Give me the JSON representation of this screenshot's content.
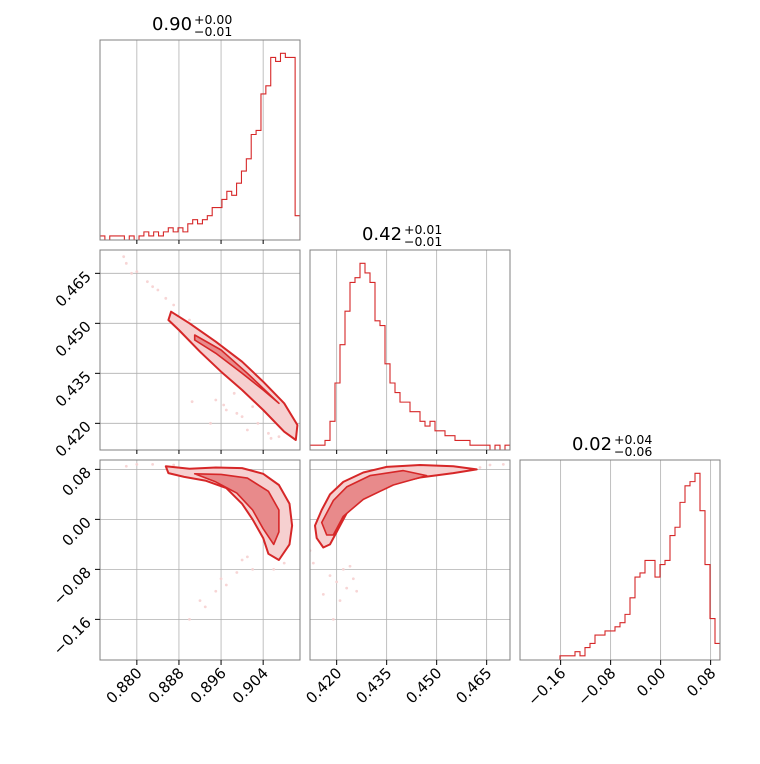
{
  "colors": {
    "series": "#d62728",
    "fill_inner": "#e88a8b",
    "fill_outer": "#f6d0d0",
    "grid": "#b0b0b0",
    "frame": "#808080"
  },
  "chart_data": {
    "type": "corner",
    "grid": true,
    "parameters": [
      {
        "title_main": "0.90",
        "title_sup": "+0.00",
        "title_sub": "−0.01",
        "range": [
          0.873,
          0.911
        ],
        "ticks": [
          0.88,
          0.888,
          0.896,
          0.904
        ],
        "tick_labels": [
          "0.880",
          "0.888",
          "0.896",
          "0.904"
        ]
      },
      {
        "title_main": "0.42",
        "title_sup": "+0.01",
        "title_sub": "−0.01",
        "range": [
          0.412,
          0.472
        ],
        "ticks": [
          0.42,
          0.435,
          0.45,
          0.465
        ],
        "tick_labels": [
          "0.420",
          "0.435",
          "0.450",
          "0.465"
        ]
      },
      {
        "title_main": "0.02",
        "title_sup": "+0.04",
        "title_sub": "−0.06",
        "range": [
          -0.225,
          0.095
        ],
        "ticks": [
          -0.16,
          -0.08,
          0.0,
          0.08
        ],
        "tick_labels": [
          "−0.16",
          "−0.08",
          "0.00",
          "0.08"
        ]
      }
    ],
    "histograms": [
      {
        "param": 0,
        "bin_start": 0.873,
        "bin_end": 0.911,
        "counts": [
          1,
          0,
          1,
          1,
          1,
          0,
          1,
          0,
          1,
          2,
          1,
          2,
          1,
          2,
          3,
          2,
          3,
          2,
          4,
          5,
          4,
          5,
          6,
          8,
          8,
          10,
          12,
          11,
          14,
          17,
          20,
          26,
          27,
          36,
          38,
          45,
          44,
          46,
          45,
          45,
          6
        ]
      },
      {
        "param": 1,
        "bin_start": 0.412,
        "bin_end": 0.472,
        "counts": [
          1,
          1,
          1,
          2,
          6,
          14,
          22,
          29,
          35,
          36,
          39,
          37,
          35,
          27,
          26,
          18,
          14,
          12,
          10,
          10,
          8,
          8,
          6,
          5,
          6,
          4,
          4,
          3,
          3,
          2,
          2,
          2,
          1,
          1,
          1,
          1,
          0,
          1,
          0,
          1
        ]
      },
      {
        "param": 2,
        "bin_start": -0.225,
        "bin_end": 0.095,
        "counts": [
          0,
          0,
          0,
          0,
          0,
          0,
          0,
          0,
          1,
          1,
          1,
          2,
          1,
          3,
          4,
          6,
          6,
          7,
          7,
          8,
          9,
          11,
          15,
          20,
          21,
          24,
          24,
          20,
          23,
          24,
          30,
          32,
          38,
          42,
          43,
          45,
          36,
          23,
          10,
          4
        ]
      }
    ],
    "pairs": [
      {
        "x": 0,
        "y": 1,
        "outer": [
          [
            0.8865,
            0.4535
          ],
          [
            0.89,
            0.45
          ],
          [
            0.895,
            0.4445
          ],
          [
            0.9,
            0.4385
          ],
          [
            0.904,
            0.4325
          ],
          [
            0.908,
            0.426
          ],
          [
            0.9105,
            0.4195
          ],
          [
            0.9102,
            0.415
          ],
          [
            0.908,
            0.4175
          ],
          [
            0.904,
            0.424
          ],
          [
            0.9,
            0.43
          ],
          [
            0.896,
            0.4355
          ],
          [
            0.892,
            0.4415
          ],
          [
            0.888,
            0.448
          ],
          [
            0.886,
            0.451
          ]
        ],
        "inner": [
          [
            0.891,
            0.4465
          ],
          [
            0.896,
            0.442
          ],
          [
            0.901,
            0.435
          ],
          [
            0.905,
            0.429
          ],
          [
            0.907,
            0.426
          ],
          [
            0.904,
            0.43
          ],
          [
            0.9,
            0.435
          ],
          [
            0.895,
            0.441
          ],
          [
            0.891,
            0.445
          ]
        ],
        "scatter": [
          [
            0.8775,
            0.47
          ],
          [
            0.878,
            0.468
          ],
          [
            0.88,
            0.4655
          ],
          [
            0.882,
            0.4625
          ],
          [
            0.879,
            0.465
          ],
          [
            0.884,
            0.46
          ],
          [
            0.8855,
            0.4575
          ],
          [
            0.883,
            0.461
          ],
          [
            0.887,
            0.4555
          ],
          [
            0.89,
            0.451
          ],
          [
            0.8965,
            0.4255
          ],
          [
            0.899,
            0.423
          ],
          [
            0.902,
            0.425
          ],
          [
            0.9,
            0.422
          ],
          [
            0.897,
            0.424
          ],
          [
            0.8985,
            0.429
          ],
          [
            0.903,
            0.42
          ],
          [
            0.905,
            0.417
          ],
          [
            0.901,
            0.418
          ],
          [
            0.9055,
            0.4155
          ],
          [
            0.894,
            0.42
          ],
          [
            0.8905,
            0.4265
          ],
          [
            0.895,
            0.427
          ],
          [
            0.907,
            0.416
          ]
        ]
      },
      {
        "x": 0,
        "y": 2,
        "outer": [
          [
            0.8855,
            0.085
          ],
          [
            0.89,
            0.081
          ],
          [
            0.895,
            0.083
          ],
          [
            0.9,
            0.082
          ],
          [
            0.904,
            0.073
          ],
          [
            0.907,
            0.055
          ],
          [
            0.909,
            0.025
          ],
          [
            0.9095,
            -0.01
          ],
          [
            0.909,
            -0.04
          ],
          [
            0.907,
            -0.065
          ],
          [
            0.905,
            -0.055
          ],
          [
            0.904,
            -0.03
          ],
          [
            0.902,
            0.0
          ],
          [
            0.9,
            0.025
          ],
          [
            0.897,
            0.05
          ],
          [
            0.893,
            0.062
          ],
          [
            0.889,
            0.068
          ],
          [
            0.886,
            0.074
          ]
        ],
        "inner": [
          [
            0.891,
            0.073
          ],
          [
            0.896,
            0.072
          ],
          [
            0.901,
            0.066
          ],
          [
            0.905,
            0.045
          ],
          [
            0.907,
            0.015
          ],
          [
            0.907,
            -0.02
          ],
          [
            0.906,
            -0.04
          ],
          [
            0.904,
            -0.015
          ],
          [
            0.902,
            0.015
          ],
          [
            0.899,
            0.042
          ],
          [
            0.895,
            0.06
          ]
        ],
        "scatter": [
          [
            0.878,
            0.085
          ],
          [
            0.883,
            0.088
          ],
          [
            0.895,
            -0.115
          ],
          [
            0.899,
            -0.085
          ],
          [
            0.9,
            -0.065
          ],
          [
            0.901,
            -0.06
          ],
          [
            0.896,
            -0.095
          ],
          [
            0.893,
            -0.14
          ],
          [
            0.89,
            -0.16
          ],
          [
            0.892,
            -0.13
          ],
          [
            0.897,
            -0.105
          ],
          [
            0.902,
            -0.08
          ],
          [
            0.88,
            0.088
          ],
          [
            0.887,
            0.087
          ],
          [
            0.908,
            -0.07
          ],
          [
            0.906,
            -0.08
          ]
        ]
      },
      {
        "x": 1,
        "y": 2,
        "outer": [
          [
            0.4135,
            -0.01
          ],
          [
            0.414,
            -0.03
          ],
          [
            0.416,
            -0.045
          ],
          [
            0.418,
            -0.04
          ],
          [
            0.42,
            -0.02
          ],
          [
            0.423,
            0.01
          ],
          [
            0.428,
            0.035
          ],
          [
            0.435,
            0.055
          ],
          [
            0.445,
            0.067
          ],
          [
            0.455,
            0.074
          ],
          [
            0.462,
            0.08
          ],
          [
            0.455,
            0.085
          ],
          [
            0.445,
            0.087
          ],
          [
            0.435,
            0.084
          ],
          [
            0.428,
            0.075
          ],
          [
            0.422,
            0.06
          ],
          [
            0.418,
            0.04
          ],
          [
            0.4155,
            0.015
          ]
        ],
        "inner": [
          [
            0.4155,
            -0.005
          ],
          [
            0.417,
            -0.025
          ],
          [
            0.419,
            -0.025
          ],
          [
            0.422,
            0.005
          ],
          [
            0.428,
            0.032
          ],
          [
            0.437,
            0.055
          ],
          [
            0.447,
            0.07
          ],
          [
            0.44,
            0.078
          ],
          [
            0.43,
            0.07
          ],
          [
            0.423,
            0.052
          ],
          [
            0.419,
            0.03
          ]
        ],
        "scatter": [
          [
            0.412,
            -0.05
          ],
          [
            0.413,
            -0.07
          ],
          [
            0.418,
            -0.09
          ],
          [
            0.42,
            -0.1
          ],
          [
            0.422,
            -0.08
          ],
          [
            0.423,
            -0.11
          ],
          [
            0.416,
            -0.12
          ],
          [
            0.419,
            -0.16
          ],
          [
            0.421,
            -0.13
          ],
          [
            0.425,
            -0.095
          ],
          [
            0.463,
            0.083
          ],
          [
            0.466,
            0.087
          ],
          [
            0.452,
            0.078
          ],
          [
            0.47,
            0.088
          ],
          [
            0.426,
            -0.115
          ],
          [
            0.424,
            -0.075
          ]
        ]
      }
    ]
  }
}
